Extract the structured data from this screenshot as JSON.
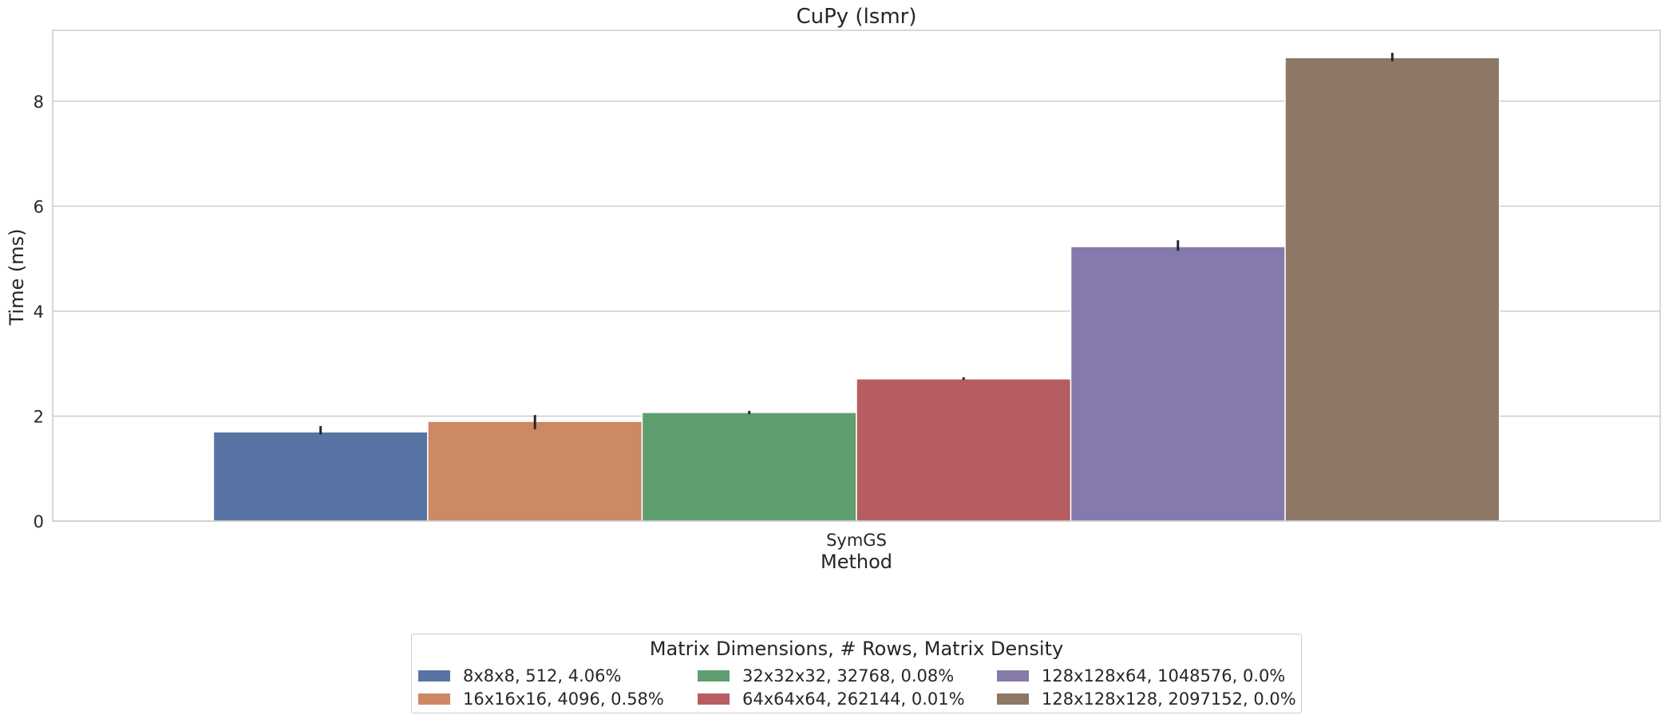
{
  "chart_data": {
    "type": "bar",
    "title": "CuPy (lsmr)",
    "xlabel": "Method",
    "ylabel": "Time (ms)",
    "categories": [
      "SymGS"
    ],
    "ylim": [
      0,
      9.35
    ],
    "yticks": [
      0,
      2,
      4,
      6,
      8
    ],
    "grid": true,
    "legend": {
      "title": "Matrix Dimensions, # Rows, Matrix Density",
      "placement": "bottom-center",
      "columns": 3
    },
    "series": [
      {
        "name": "8x8x8, 512, 4.06%",
        "color": "#5874a4",
        "values": [
          1.7
        ],
        "error": [
          [
            1.65,
            1.81
          ]
        ]
      },
      {
        "name": "16x16x16, 4096, 0.58%",
        "color": "#cd8864",
        "values": [
          1.9
        ],
        "error": [
          [
            1.75,
            2.02
          ]
        ]
      },
      {
        "name": "32x32x32, 32768, 0.08%",
        "color": "#5f9e6e",
        "values": [
          2.07
        ],
        "error": [
          [
            2.04,
            2.1
          ]
        ]
      },
      {
        "name": "64x64x64, 262144, 0.01%",
        "color": "#b55d60",
        "values": [
          2.71
        ],
        "error": [
          [
            2.69,
            2.74
          ]
        ]
      },
      {
        "name": "128x128x64, 1048576, 0.0%",
        "color": "#857aab",
        "values": [
          5.23
        ],
        "error": [
          [
            5.15,
            5.35
          ]
        ]
      },
      {
        "name": "128x128x128, 2097152, 0.0%",
        "color": "#8d7866",
        "values": [
          8.83
        ],
        "error": [
          [
            8.76,
            8.92
          ]
        ]
      }
    ]
  }
}
